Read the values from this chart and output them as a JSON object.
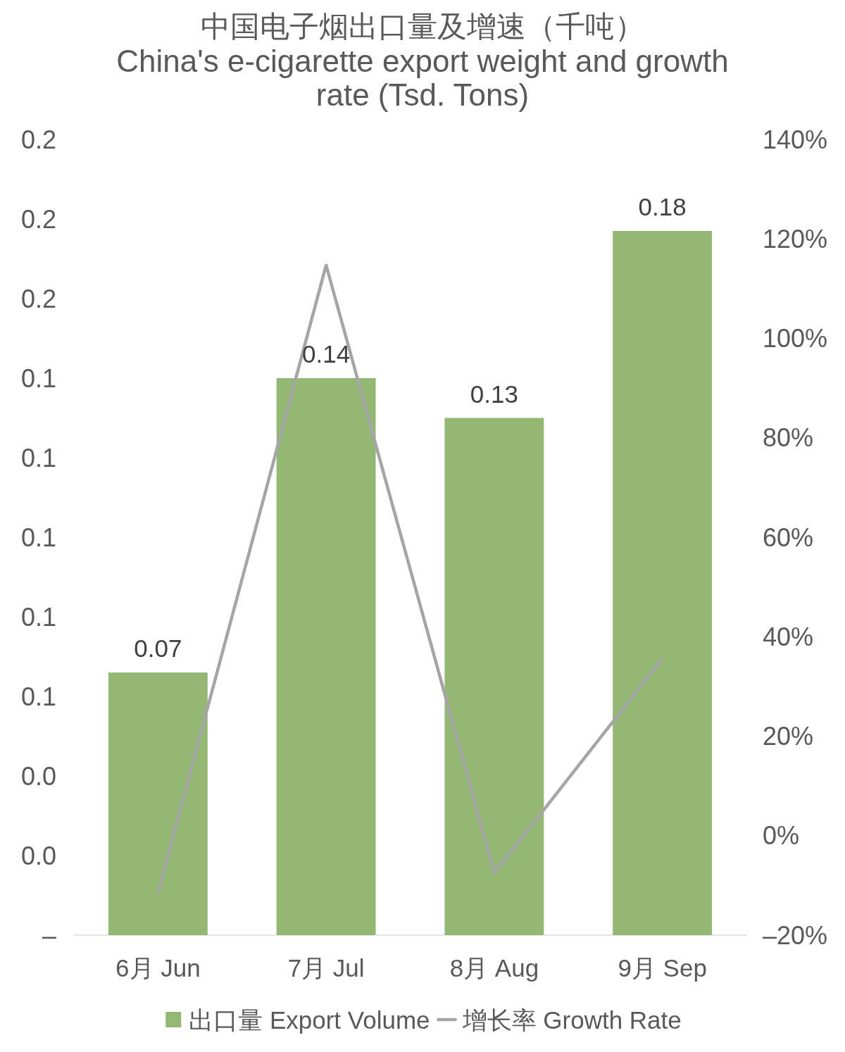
{
  "chart_data": {
    "type": "bar",
    "title": "中国电子烟出口量及增速（千吨）",
    "subtitle": "China's e-cigarette export weight and growth rate (Tsd. Tons)",
    "categories": [
      "6月 Jun",
      "7月 Jul",
      "8月 Aug",
      "9月 Sep"
    ],
    "series": [
      {
        "name": "出口量 Export Volume",
        "color": "#93b874",
        "values": [
          0.066,
          0.14,
          0.13,
          0.177
        ],
        "value_labels": [
          "0.07",
          "0.14",
          "0.13",
          "0.18"
        ]
      },
      {
        "name": "增长率 Growth Rate",
        "type": "line",
        "axis": "y2",
        "color": "#a5a5a5",
        "values": [
          -11.5,
          114.7,
          -7.5,
          35.6
        ]
      }
    ],
    "ylim": [
      0,
      0.2
    ],
    "yticks": [
      {
        "value": 0,
        "label": "–"
      },
      {
        "value": 0.02,
        "label": "0.0"
      },
      {
        "value": 0.04,
        "label": "0.0"
      },
      {
        "value": 0.06,
        "label": "0.1"
      },
      {
        "value": 0.08,
        "label": "0.1"
      },
      {
        "value": 0.1,
        "label": "0.1"
      },
      {
        "value": 0.12,
        "label": "0.1"
      },
      {
        "value": 0.14,
        "label": "0.1"
      },
      {
        "value": 0.16,
        "label": "0.2"
      },
      {
        "value": 0.18,
        "label": "0.2"
      },
      {
        "value": 0.2,
        "label": "0.2"
      }
    ],
    "y2lim": [
      -20,
      140
    ],
    "y2ticks": [
      {
        "value": -20,
        "label": "–20%"
      },
      {
        "value": 0,
        "label": "0%"
      },
      {
        "value": 20,
        "label": "20%"
      },
      {
        "value": 40,
        "label": "40%"
      },
      {
        "value": 60,
        "label": "60%"
      },
      {
        "value": 80,
        "label": "80%"
      },
      {
        "value": 100,
        "label": "100%"
      },
      {
        "value": 120,
        "label": "120%"
      },
      {
        "value": 140,
        "label": "140%"
      }
    ],
    "legend": "bottom",
    "grid": false
  }
}
